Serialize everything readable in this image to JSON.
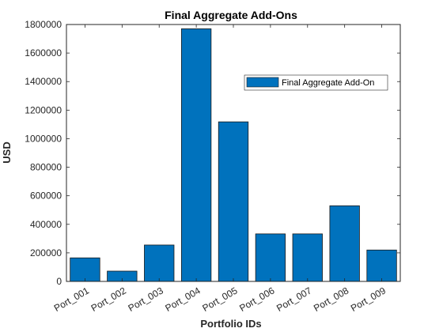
{
  "chart_data": {
    "type": "bar",
    "title": "Final Aggregate Add-Ons",
    "xlabel": "Portfolio IDs",
    "ylabel": "USD",
    "categories": [
      "Port_001",
      "Port_002",
      "Port_003",
      "Port_004",
      "Port_005",
      "Port_006",
      "Port_007",
      "Port_008",
      "Port_009"
    ],
    "series": [
      {
        "name": "Final Aggregate Add-On",
        "values": [
          165000,
          72000,
          255000,
          1770000,
          1118000,
          333000,
          333000,
          530000,
          220000
        ],
        "color": "#0072bd"
      }
    ],
    "ylim": [
      0,
      1800000
    ],
    "yticks": [
      "0",
      "200000",
      "400000",
      "600000",
      "800000",
      "1000000",
      "1200000",
      "1400000",
      "1600000",
      "1800000"
    ],
    "grid": false,
    "legend_position": "upper-right"
  }
}
